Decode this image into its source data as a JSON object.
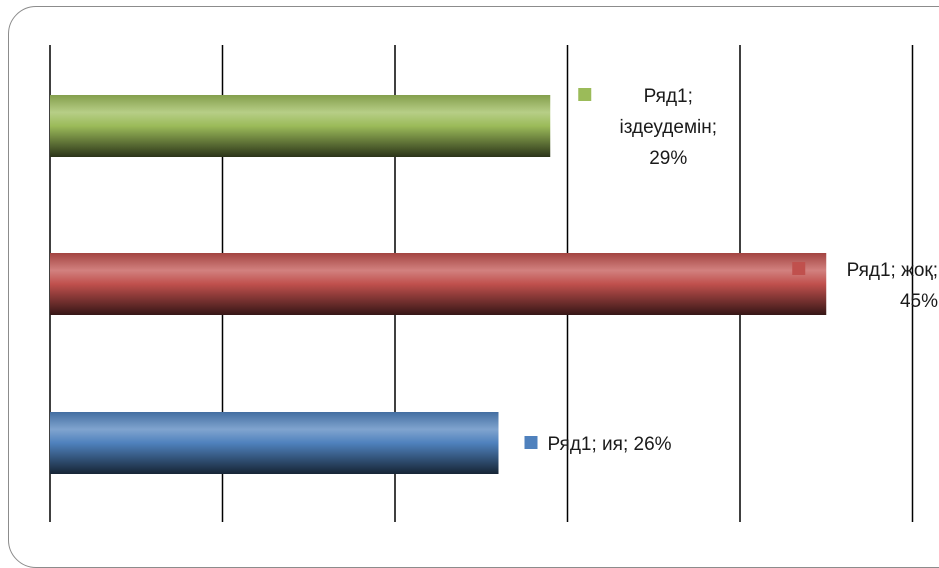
{
  "chart_data": {
    "type": "bar",
    "orientation": "horizontal",
    "categories": [
      "ия",
      "жоқ",
      "іздеудемін"
    ],
    "series": [
      {
        "name": "Ряд1",
        "values": [
          26,
          45,
          29
        ]
      }
    ],
    "value_unit": "%",
    "xlim": [
      0,
      50
    ],
    "grid": "vertical",
    "colors": [
      "#4f81bd",
      "#c0504d",
      "#9bbb59"
    ],
    "data_labels": [
      [
        "Ряд1; ия; 26%"
      ],
      [
        "Ряд1; жоқ;",
        "45%"
      ],
      [
        "Ряд1;",
        "іздеудемін;",
        "29%"
      ]
    ],
    "title": "",
    "xlabel": "",
    "ylabel": ""
  }
}
